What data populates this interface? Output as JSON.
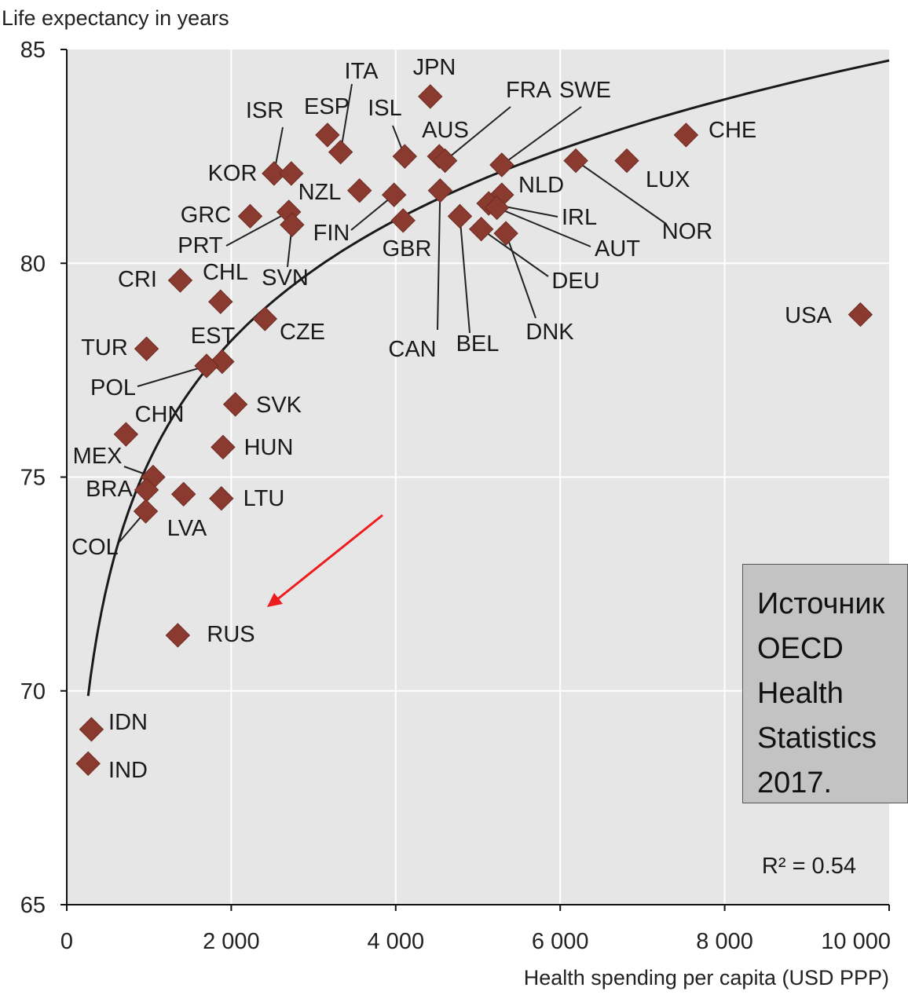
{
  "chart_data": {
    "type": "scatter",
    "ylabel": "Life expectancy in years",
    "xlabel": "Health spending per capita (USD PPP)",
    "xlim": [
      0,
      10000
    ],
    "ylim": [
      65,
      85
    ],
    "x_ticks": [
      "0",
      "2 000",
      "4 000",
      "6 000",
      "8 000",
      "10 000"
    ],
    "y_ticks": [
      "65",
      "70",
      "75",
      "80",
      "85"
    ],
    "grid": true,
    "marker": "diamond",
    "marker_color": "#8b3a2f",
    "trend": "logarithmic",
    "r_squared_label": "R² = 0.54",
    "points": [
      {
        "label": "JPN",
        "x": 4420,
        "y": 83.9
      },
      {
        "label": "ITA",
        "x": 3330,
        "y": 82.6
      },
      {
        "label": "ESP",
        "x": 3170,
        "y": 83.0
      },
      {
        "label": "ISL",
        "x": 4110,
        "y": 82.5
      },
      {
        "label": "AUS",
        "x": 4530,
        "y": 82.5
      },
      {
        "label": "FRA",
        "x": 4600,
        "y": 82.4
      },
      {
        "label": "SWE",
        "x": 5290,
        "y": 82.3
      },
      {
        "label": "CHE",
        "x": 7530,
        "y": 83.0
      },
      {
        "label": "ISR",
        "x": 2520,
        "y": 82.1
      },
      {
        "label": "KOR",
        "x": 2730,
        "y": 82.1
      },
      {
        "label": "NZL",
        "x": 3560,
        "y": 81.7
      },
      {
        "label": "NLD",
        "x": 5290,
        "y": 81.6
      },
      {
        "label": "NOR",
        "x": 6190,
        "y": 82.4
      },
      {
        "label": "LUX",
        "x": 6810,
        "y": 82.4
      },
      {
        "label": "GRC",
        "x": 2230,
        "y": 81.1
      },
      {
        "label": "PRT",
        "x": 2700,
        "y": 81.2
      },
      {
        "label": "FIN",
        "x": 3980,
        "y": 81.6
      },
      {
        "label": "GBR",
        "x": 4090,
        "y": 81.0
      },
      {
        "label": "CAN",
        "x": 4540,
        "y": 81.7
      },
      {
        "label": "BEL",
        "x": 4780,
        "y": 81.1
      },
      {
        "label": "IRL",
        "x": 5130,
        "y": 81.4
      },
      {
        "label": "AUT",
        "x": 5230,
        "y": 81.3
      },
      {
        "label": "DEU",
        "x": 5040,
        "y": 80.8
      },
      {
        "label": "DNK",
        "x": 5340,
        "y": 80.7
      },
      {
        "label": "SVN",
        "x": 2740,
        "y": 80.9
      },
      {
        "label": "CRI",
        "x": 1380,
        "y": 79.6
      },
      {
        "label": "CHL",
        "x": 1870,
        "y": 79.1
      },
      {
        "label": "CZE",
        "x": 2410,
        "y": 78.7
      },
      {
        "label": "USA",
        "x": 9650,
        "y": 78.8
      },
      {
        "label": "TUR",
        "x": 970,
        "y": 78.0
      },
      {
        "label": "EST",
        "x": 1890,
        "y": 77.7
      },
      {
        "label": "POL",
        "x": 1700,
        "y": 77.6
      },
      {
        "label": "SVK",
        "x": 2050,
        "y": 76.7
      },
      {
        "label": "CHN",
        "x": 720,
        "y": 76.0
      },
      {
        "label": "HUN",
        "x": 1900,
        "y": 75.7
      },
      {
        "label": "MEX",
        "x": 1050,
        "y": 75.0
      },
      {
        "label": "BRA",
        "x": 970,
        "y": 74.7
      },
      {
        "label": "LTU",
        "x": 1880,
        "y": 74.5
      },
      {
        "label": "LVA",
        "x": 1420,
        "y": 74.6
      },
      {
        "label": "COL",
        "x": 960,
        "y": 74.2
      },
      {
        "label": "RUS",
        "x": 1350,
        "y": 71.3
      },
      {
        "label": "IDN",
        "x": 300,
        "y": 69.1
      },
      {
        "label": "IND",
        "x": 260,
        "y": 68.3
      }
    ]
  },
  "source_box": {
    "lines": [
      "Источник",
      "OECD",
      "Health",
      "Statistics",
      "2017."
    ]
  },
  "arrow": {
    "color": "#ee1c1c",
    "target_label": "RUS"
  }
}
